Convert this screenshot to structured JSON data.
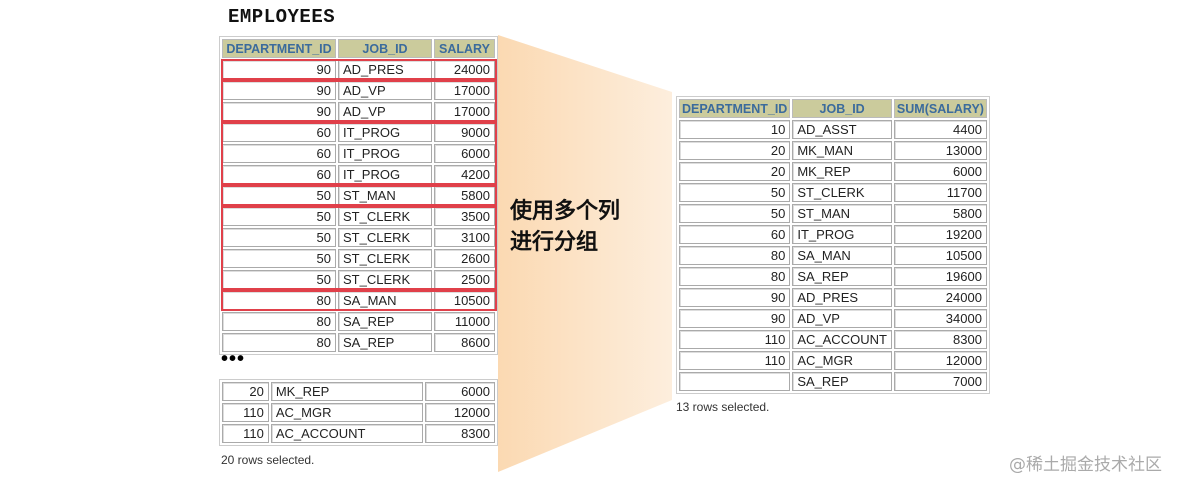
{
  "title": "EMPLOYEES",
  "left": {
    "headers": [
      "DEPARTMENT_ID",
      "JOB_ID",
      "SALARY"
    ],
    "rows_top": [
      [
        "90",
        "AD_PRES",
        "24000"
      ],
      [
        "90",
        "AD_VP",
        "17000"
      ],
      [
        "90",
        "AD_VP",
        "17000"
      ],
      [
        "60",
        "IT_PROG",
        "9000"
      ],
      [
        "60",
        "IT_PROG",
        "6000"
      ],
      [
        "60",
        "IT_PROG",
        "4200"
      ],
      [
        "50",
        "ST_MAN",
        "5800"
      ],
      [
        "50",
        "ST_CLERK",
        "3500"
      ],
      [
        "50",
        "ST_CLERK",
        "3100"
      ],
      [
        "50",
        "ST_CLERK",
        "2600"
      ],
      [
        "50",
        "ST_CLERK",
        "2500"
      ],
      [
        "80",
        "SA_MAN",
        "10500"
      ],
      [
        "80",
        "SA_REP",
        "11000"
      ],
      [
        "80",
        "SA_REP",
        "8600"
      ]
    ],
    "ellipsis": "•••",
    "rows_bottom": [
      [
        "20",
        "MK_REP",
        "6000"
      ],
      [
        "110",
        "AC_MGR",
        "12000"
      ],
      [
        "110",
        "AC_ACCOUNT",
        "8300"
      ]
    ],
    "footer": "20 rows selected."
  },
  "caption": {
    "line1": "使用多个列",
    "line2": "进行分组"
  },
  "right": {
    "headers": [
      "DEPARTMENT_ID",
      "JOB_ID",
      "SUM(SALARY)"
    ],
    "rows": [
      [
        "10",
        "AD_ASST",
        "4400"
      ],
      [
        "20",
        "MK_MAN",
        "13000"
      ],
      [
        "20",
        "MK_REP",
        "6000"
      ],
      [
        "50",
        "ST_CLERK",
        "11700"
      ],
      [
        "50",
        "ST_MAN",
        "5800"
      ],
      [
        "60",
        "IT_PROG",
        "19200"
      ],
      [
        "80",
        "SA_MAN",
        "10500"
      ],
      [
        "80",
        "SA_REP",
        "19600"
      ],
      [
        "90",
        "AD_PRES",
        "24000"
      ],
      [
        "90",
        "AD_VP",
        "34000"
      ],
      [
        "110",
        "AC_ACCOUNT",
        "8300"
      ],
      [
        "110",
        "AC_MGR",
        "12000"
      ],
      [
        "",
        "SA_REP",
        "7000"
      ]
    ],
    "footer": "13 rows selected."
  },
  "watermark": "@稀土掘金技术社区",
  "colors": {
    "header_bg": "#cbcb9c",
    "header_text": "#3b6b9c",
    "group_box": "#e0404a",
    "funnel": "#fbdcb8"
  }
}
